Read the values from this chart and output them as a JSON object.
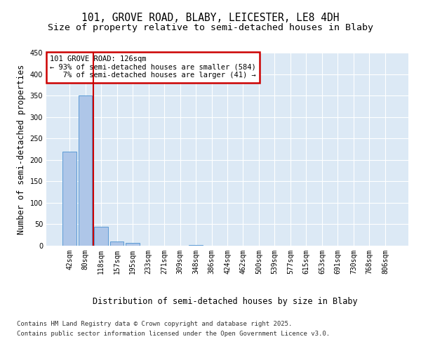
{
  "title_line1": "101, GROVE ROAD, BLABY, LEICESTER, LE8 4DH",
  "title_line2": "Size of property relative to semi-detached houses in Blaby",
  "xlabel": "Distribution of semi-detached houses by size in Blaby",
  "ylabel": "Number of semi-detached properties",
  "categories": [
    "42sqm",
    "80sqm",
    "118sqm",
    "157sqm",
    "195sqm",
    "233sqm",
    "271sqm",
    "309sqm",
    "348sqm",
    "386sqm",
    "424sqm",
    "462sqm",
    "500sqm",
    "539sqm",
    "577sqm",
    "615sqm",
    "653sqm",
    "691sqm",
    "730sqm",
    "768sqm",
    "806sqm"
  ],
  "values": [
    220,
    350,
    45,
    10,
    6,
    0,
    0,
    0,
    1,
    0,
    0,
    0,
    0,
    0,
    0,
    0,
    0,
    0,
    0,
    0,
    0
  ],
  "bar_color": "#aec6e8",
  "bar_edge_color": "#5b9bd5",
  "vline_color": "#cc0000",
  "annotation_text": "101 GROVE ROAD: 126sqm\n← 93% of semi-detached houses are smaller (584)\n   7% of semi-detached houses are larger (41) →",
  "annotation_box_color": "#cc0000",
  "bg_color": "#dce9f5",
  "ylim": [
    0,
    450
  ],
  "yticks": [
    0,
    50,
    100,
    150,
    200,
    250,
    300,
    350,
    400,
    450
  ],
  "footer_line1": "Contains HM Land Registry data © Crown copyright and database right 2025.",
  "footer_line2": "Contains public sector information licensed under the Open Government Licence v3.0.",
  "title_fontsize": 10.5,
  "subtitle_fontsize": 9.5,
  "axis_label_fontsize": 8.5,
  "tick_fontsize": 7,
  "footer_fontsize": 6.5
}
